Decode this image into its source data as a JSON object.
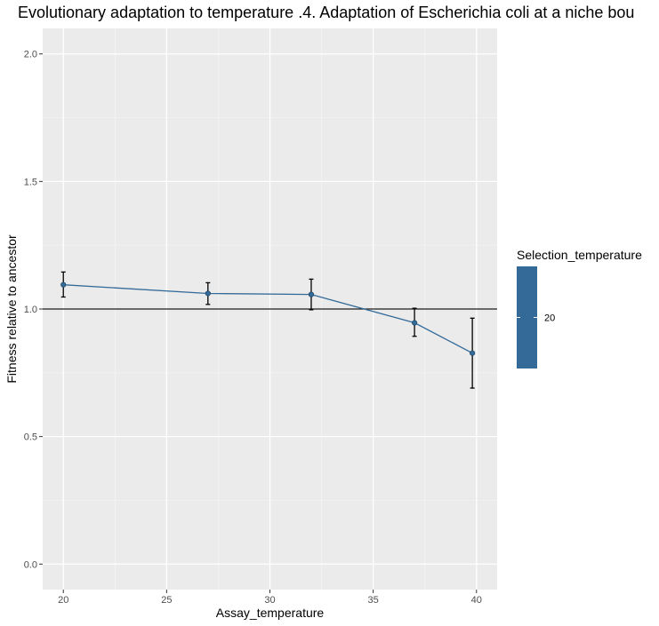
{
  "chart_data": {
    "type": "line",
    "title": "Evolutionary adaptation to temperature .4. Adaptation of Escherichia coli at a niche bou",
    "xlabel": "Assay_temperature",
    "ylabel": "Fitness relative to ancestor",
    "xlim": [
      19,
      41
    ],
    "ylim": [
      -0.1,
      2.1
    ],
    "x_ticks": [
      20,
      25,
      30,
      35,
      40
    ],
    "x_tick_labels": [
      "20",
      "25",
      "30",
      "35",
      "40"
    ],
    "y_ticks": [
      0.0,
      0.5,
      1.0,
      1.5,
      2.0
    ],
    "y_tick_labels": [
      "0.0",
      "0.5",
      "1.0",
      "1.5",
      "2.0"
    ],
    "grid": true,
    "reference_line": {
      "y": 1.0
    },
    "series": [
      {
        "color": "#336a98",
        "points": [
          {
            "x": 20.0,
            "y": 1.095,
            "err_low": 1.047,
            "err_high": 1.145
          },
          {
            "x": 27.0,
            "y": 1.061,
            "err_low": 1.018,
            "err_high": 1.103
          },
          {
            "x": 32.0,
            "y": 1.057,
            "err_low": 0.997,
            "err_high": 1.117
          },
          {
            "x": 37.0,
            "y": 0.946,
            "err_low": 0.893,
            "err_high": 1.003
          },
          {
            "x": 39.8,
            "y": 0.827,
            "err_low": 0.69,
            "err_high": 0.964
          }
        ]
      }
    ],
    "legend": {
      "title": "Selection_temperature",
      "placement": "right",
      "entries": [
        {
          "label": "20",
          "color": "#336a98"
        }
      ]
    }
  }
}
